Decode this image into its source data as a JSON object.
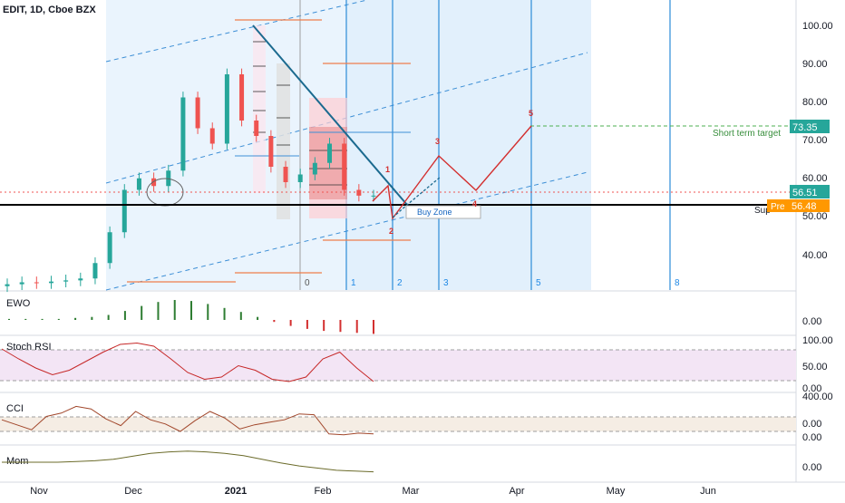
{
  "header": {
    "symbol": "EDIT, 1D, Cboe BZX"
  },
  "price_axis": {
    "ticks": [
      "100.00",
      "90.00",
      "80.00",
      "70.00",
      "60.00",
      "50.00",
      "40.00"
    ],
    "tick_values": [
      100,
      90,
      80,
      70,
      60,
      50,
      40
    ]
  },
  "price_labels": {
    "target_value": "73.35",
    "target_text": "Short term target",
    "last_value": "56.51",
    "pre_tag": "Pre",
    "pre_value": "56.48",
    "support_text": "Sup"
  },
  "annotations": {
    "buy_zone": "Buy Zone",
    "fib_numbers": [
      "0",
      "1",
      "2",
      "3",
      "5",
      "8"
    ],
    "wave_numbers": [
      "1",
      "2",
      "3",
      "4",
      "5"
    ]
  },
  "x_axis": {
    "ticks": [
      "Nov",
      "Dec",
      "2021",
      "Feb",
      "Mar",
      "Apr",
      "May",
      "Jun"
    ]
  },
  "indicators": {
    "ewo": {
      "label": "EWO",
      "ticks": [
        "0.00"
      ]
    },
    "stoch": {
      "label": "Stoch RSI",
      "ticks": [
        "100.00",
        "50.00",
        "0.00"
      ]
    },
    "cci": {
      "label": "CCI",
      "ticks": [
        "400.00",
        "0.00",
        "0.00"
      ]
    },
    "mom": {
      "label": "Mom",
      "ticks": [
        "0.00"
      ]
    }
  },
  "colors": {
    "up": "#26a69a",
    "down": "#ef5350",
    "accent_blue": "#2196f3",
    "target_green": "#388e3c",
    "pre_orange": "#ff9800",
    "wave_red": "#d32f2f",
    "stoch_band": "#f3e5f5",
    "cci_band": "#f5ede4"
  },
  "chart_data": [
    {
      "type": "candlestick",
      "title": "EDIT, 1D, Cboe BZX",
      "x": [
        "2020-11-05",
        "2020-11-10",
        "2020-11-15",
        "2020-11-20",
        "2020-11-25",
        "2020-12-01",
        "2020-12-04",
        "2020-12-08",
        "2020-12-11",
        "2020-12-15",
        "2020-12-18",
        "2020-12-22",
        "2020-12-28",
        "2021-01-04",
        "2021-01-07",
        "2021-01-11",
        "2021-01-14",
        "2021-01-19",
        "2021-01-22",
        "2021-01-27",
        "2021-02-01",
        "2021-02-04",
        "2021-02-09",
        "2021-02-12",
        "2021-02-17",
        "2021-02-22"
      ],
      "close": [
        33.5,
        34,
        33.8,
        34.2,
        34.5,
        35,
        39,
        47,
        58,
        61,
        59,
        63,
        82,
        74,
        70,
        88,
        76,
        72,
        64,
        60,
        62,
        65,
        70,
        58,
        56.5,
        56.51
      ],
      "ylim": [
        32,
        104
      ],
      "horizontal_lines": [
        {
          "label": "Short term target",
          "value": 73.35
        },
        {
          "label": "Sup",
          "value": 54
        }
      ],
      "projection_labels": [
        "1",
        "2",
        "3",
        "4",
        "5"
      ],
      "projection_values": [
        59,
        48.5,
        67.5,
        57.5,
        73.35
      ]
    },
    {
      "type": "bar",
      "title": "EWO",
      "values": [
        1,
        1,
        1,
        1,
        2,
        3,
        5,
        9,
        14,
        18,
        20,
        19,
        16,
        12,
        8,
        3,
        -2,
        -6,
        -9,
        -11,
        -12,
        -13,
        -14
      ],
      "ticks": [
        "0.00"
      ]
    },
    {
      "type": "line",
      "title": "Stoch RSI",
      "values": [
        82,
        60,
        40,
        25,
        35,
        55,
        75,
        92,
        95,
        88,
        60,
        30,
        15,
        20,
        45,
        35,
        15,
        10,
        20,
        60,
        75,
        40,
        10
      ],
      "ylim": [
        0,
        100
      ],
      "ticks": [
        "100.00",
        "50.00",
        "0.00"
      ]
    },
    {
      "type": "line",
      "title": "CCI",
      "values": [
        20,
        -40,
        -100,
        60,
        100,
        180,
        150,
        30,
        -50,
        120,
        20,
        -30,
        -120,
        10,
        120,
        40,
        -90,
        -40,
        -10,
        20,
        90,
        80,
        -150,
        -160,
        -140,
        -150
      ],
      "ticks": [
        "400.00",
        "0.00",
        "0.00"
      ]
    },
    {
      "type": "line",
      "title": "Mom",
      "values": [
        0,
        0,
        0,
        0,
        1,
        2,
        4,
        8,
        12,
        14,
        15,
        14,
        12,
        9,
        4,
        -1,
        -5,
        -8,
        -11,
        -12,
        -13
      ],
      "ticks": [
        "0.00"
      ]
    }
  ]
}
